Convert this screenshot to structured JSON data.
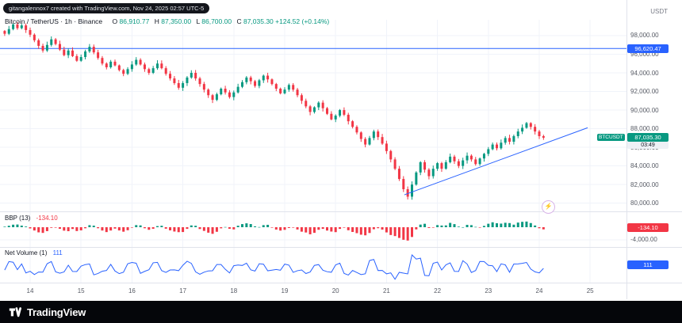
{
  "attribution": {
    "text": "gitangalennox7 created with TradingView.com, Nov 24, 2025 02:57 UTC-5"
  },
  "header": {
    "symbol_title": "Bitcoin / TetherUS · 1h · Binance",
    "ohlc": {
      "o_label": "O",
      "o": "86,910.77",
      "h_label": "H",
      "h": "87,350.00",
      "l_label": "L",
      "l": "86,700.00",
      "c_label": "C",
      "c": "87,035.30",
      "change": "+124.52 (+0.14%)"
    },
    "quote_currency": "USDT"
  },
  "badges": {
    "hline": {
      "text": "96,620.47"
    },
    "last_price": {
      "symbol_tag": "BTCUSDT",
      "text": "87,035.30",
      "countdown": "03:49"
    },
    "bbp": {
      "text": "-134.10"
    },
    "net_volume": {
      "text": "111"
    }
  },
  "indicators": {
    "bbp": {
      "label": "BBP (13)",
      "value": "-134.10",
      "axis_label": "-4,000.00"
    },
    "net_volume": {
      "label": "Net Volume (1)",
      "value": "111"
    }
  },
  "icons": {
    "flash": "⚡"
  },
  "footer": {
    "brand": "TradingView"
  },
  "colors": {
    "up": "#089981",
    "down": "#f23645",
    "accent_blue": "#2962ff"
  },
  "chart_data": {
    "type": "candlestick",
    "symbol": "BTCUSDT",
    "exchange": "Binance",
    "interval": "1h",
    "last": {
      "open": 86910.77,
      "high": 87350.0,
      "low": 86700.0,
      "close": 87035.3,
      "change": 124.52,
      "change_pct": 0.14
    },
    "y_axis": {
      "min": 79800,
      "max": 99700,
      "ticks": [
        98000,
        96000,
        94000,
        92000,
        90000,
        88000,
        86000,
        84000,
        82000,
        80000
      ],
      "tick_labels": [
        "98,000.00",
        "96,000.00",
        "94,000.00",
        "92,000.00",
        "90,000.00",
        "88,000.00",
        "86,000.00",
        "84,000.00",
        "82,000.00",
        "80,000.00"
      ]
    },
    "x_axis": {
      "tick_days": [
        14,
        15,
        16,
        17,
        18,
        19,
        20,
        21,
        22,
        23,
        24,
        25
      ],
      "tick_labels": [
        "14",
        "15",
        "16",
        "17",
        "18",
        "19",
        "20",
        "21",
        "22",
        "23",
        "24",
        "25"
      ]
    },
    "horizontal_line": {
      "price": 96620.47,
      "color": "#2962ff"
    },
    "trendline": {
      "from": {
        "day": 21.35,
        "price": 80900
      },
      "to": {
        "day": 24.95,
        "price": 88100
      },
      "color": "#2962ff"
    },
    "series": {
      "start_day": 13.5,
      "interval_days": 0.0833333,
      "closes": [
        98200,
        98700,
        99200,
        98800,
        99100,
        98600,
        98100,
        97500,
        96900,
        96400,
        97000,
        97600,
        97100,
        96500,
        95900,
        96400,
        95800,
        95300,
        95700,
        96300,
        96800,
        96200,
        95600,
        95000,
        94600,
        95200,
        94800,
        94300,
        93900,
        94400,
        94900,
        95400,
        94900,
        94400,
        94000,
        94500,
        95000,
        94500,
        93900,
        93400,
        92900,
        92400,
        92900,
        93500,
        94000,
        93400,
        92800,
        92200,
        91600,
        91100,
        91700,
        92300,
        91900,
        91400,
        91900,
        92500,
        93000,
        93500,
        93100,
        92600,
        93200,
        93700,
        93300,
        92800,
        92300,
        91800,
        92200,
        92700,
        92200,
        91600,
        91000,
        90400,
        89800,
        90300,
        90800,
        90200,
        89600,
        89000,
        89400,
        90000,
        89500,
        88800,
        88200,
        87600,
        86900,
        86300,
        87000,
        87700,
        87100,
        86400,
        85600,
        84700,
        83700,
        82600,
        81500,
        80700,
        82000,
        83300,
        84400,
        83600,
        82900,
        83700,
        84300,
        83700,
        84400,
        85000,
        84500,
        84000,
        84600,
        85100,
        84700,
        84200,
        84800,
        85300,
        85800,
        86300,
        85900,
        86500,
        87000,
        86600,
        87200,
        87700,
        88100,
        88600,
        88200,
        87700,
        87200,
        87035
      ]
    },
    "indicators": {
      "bbp": {
        "type": "histogram",
        "period": 13,
        "last": -134.1,
        "visible_axis_tick": -4000
      },
      "net_volume": {
        "type": "line",
        "period": 1,
        "last": 111,
        "color": "#2962ff"
      }
    }
  }
}
